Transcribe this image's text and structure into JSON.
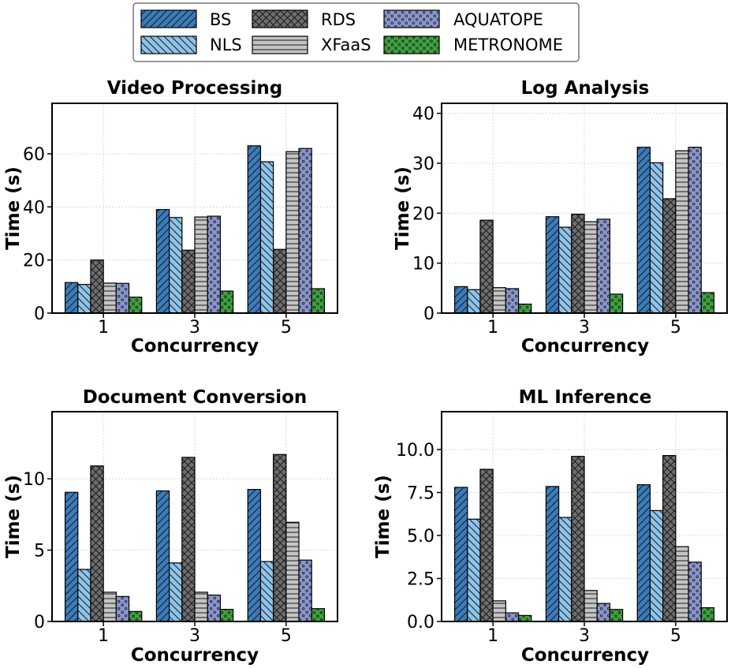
{
  "legend": {
    "items": [
      {
        "name": "BS",
        "color": "#3a7cbb",
        "hatch": "diag-fwd"
      },
      {
        "name": "NLS",
        "color": "#8ec4ea",
        "hatch": "diag-back"
      },
      {
        "name": "RDS",
        "color": "#6e6e6e",
        "hatch": "cross"
      },
      {
        "name": "XFaaS",
        "color": "#c4c4c4",
        "hatch": "horiz"
      },
      {
        "name": "AQUATOPE",
        "color": "#8996cc",
        "hatch": "dots"
      },
      {
        "name": "METRONOME",
        "color": "#3fa43f",
        "hatch": "stars"
      }
    ]
  },
  "chart_data": [
    {
      "type": "bar",
      "title": "Video Processing",
      "xlabel": "Concurrency",
      "ylabel": "Time (s)",
      "categories": [
        "1",
        "3",
        "5"
      ],
      "ylim": [
        0,
        79
      ],
      "yticks": [
        0,
        20,
        40,
        60
      ],
      "ytick_labels": [
        "0",
        "20",
        "40",
        "60"
      ],
      "series": [
        {
          "name": "BS",
          "values": [
            11.5,
            39,
            63
          ]
        },
        {
          "name": "NLS",
          "values": [
            10.8,
            36,
            57
          ]
        },
        {
          "name": "RDS",
          "values": [
            20,
            23.7,
            24
          ]
        },
        {
          "name": "XFaaS",
          "values": [
            11.3,
            36.2,
            60.8
          ]
        },
        {
          "name": "AQUATOPE",
          "values": [
            11.2,
            36.5,
            62
          ]
        },
        {
          "name": "METRONOME",
          "values": [
            6,
            8.3,
            9.2
          ]
        }
      ]
    },
    {
      "type": "bar",
      "title": "Log Analysis",
      "xlabel": "Concurrency",
      "ylabel": "Time (s)",
      "categories": [
        "1",
        "3",
        "5"
      ],
      "ylim": [
        0,
        42
      ],
      "yticks": [
        0,
        10,
        20,
        30,
        40
      ],
      "ytick_labels": [
        "0",
        "10",
        "20",
        "30",
        "40"
      ],
      "series": [
        {
          "name": "BS",
          "values": [
            5.3,
            19.3,
            33.2
          ]
        },
        {
          "name": "NLS",
          "values": [
            4.7,
            17.2,
            30.1
          ]
        },
        {
          "name": "RDS",
          "values": [
            18.6,
            19.8,
            22.9
          ]
        },
        {
          "name": "XFaaS",
          "values": [
            5.1,
            18.3,
            32.5
          ]
        },
        {
          "name": "AQUATOPE",
          "values": [
            4.9,
            18.8,
            33.2
          ]
        },
        {
          "name": "METRONOME",
          "values": [
            1.8,
            3.8,
            4.1
          ]
        }
      ]
    },
    {
      "type": "bar",
      "title": "Document Conversion",
      "xlabel": "Concurrency",
      "ylabel": "Time (s)",
      "categories": [
        "1",
        "3",
        "5"
      ],
      "ylim": [
        0,
        14.7
      ],
      "yticks": [
        0,
        5,
        10
      ],
      "ytick_labels": [
        "0",
        "5",
        "10"
      ],
      "series": [
        {
          "name": "BS",
          "values": [
            9.05,
            9.15,
            9.25
          ]
        },
        {
          "name": "NLS",
          "values": [
            3.65,
            4.1,
            4.2
          ]
        },
        {
          "name": "RDS",
          "values": [
            10.9,
            11.5,
            11.7
          ]
        },
        {
          "name": "XFaaS",
          "values": [
            2.05,
            2.05,
            6.95
          ]
        },
        {
          "name": "AQUATOPE",
          "values": [
            1.75,
            1.85,
            4.3
          ]
        },
        {
          "name": "METRONOME",
          "values": [
            0.7,
            0.85,
            0.9
          ]
        }
      ]
    },
    {
      "type": "bar",
      "title": "ML Inference",
      "xlabel": "Concurrency",
      "ylabel": "Time (s)",
      "categories": [
        "1",
        "3",
        "5"
      ],
      "ylim": [
        0,
        12.2
      ],
      "yticks": [
        0,
        2.5,
        5,
        7.5,
        10
      ],
      "ytick_labels": [
        "0.0",
        "2.5",
        "5.0",
        "7.5",
        "10.0"
      ],
      "series": [
        {
          "name": "BS",
          "values": [
            7.8,
            7.85,
            7.95
          ]
        },
        {
          "name": "NLS",
          "values": [
            5.95,
            6.05,
            6.45
          ]
        },
        {
          "name": "RDS",
          "values": [
            8.85,
            9.6,
            9.65
          ]
        },
        {
          "name": "XFaaS",
          "values": [
            1.2,
            1.8,
            4.35
          ]
        },
        {
          "name": "AQUATOPE",
          "values": [
            0.5,
            1.05,
            3.45
          ]
        },
        {
          "name": "METRONOME",
          "values": [
            0.35,
            0.7,
            0.8
          ]
        }
      ]
    }
  ]
}
